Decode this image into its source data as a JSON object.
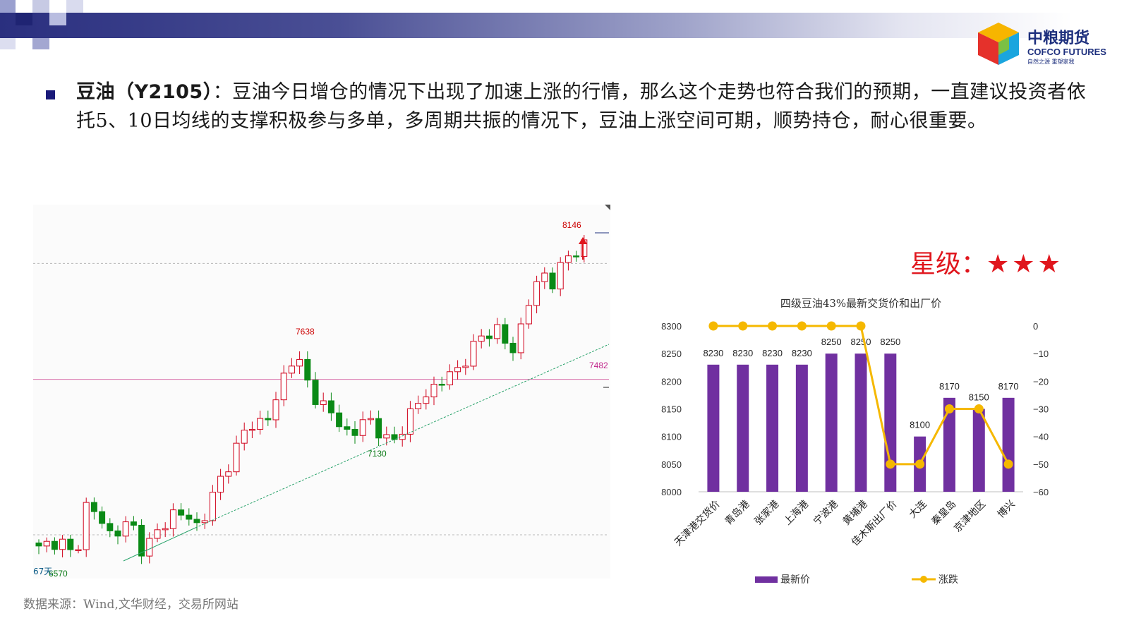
{
  "logo": {
    "cn": "中粮期货",
    "en": "COFCO FUTURES",
    "sub": "自然之源 重塑家我"
  },
  "bullet": {
    "title": "豆油（Y2105）",
    "text": "：豆油今日增仓的情况下出现了加速上涨的行情，那么这个走势也符合我们的预期，一直建议投资者依托5、10日均线的支撑积极参与多单，多周期共振的情况下，豆油上涨空间可期，顺势持仓，耐心很重要。"
  },
  "rating": {
    "label": "星级：",
    "stars": "★★★"
  },
  "candlestick": {
    "labels": {
      "high": "8146",
      "mid_high": "7638",
      "mid_low": "7130",
      "level": "7482",
      "low": "6570",
      "left_edge": "67天"
    },
    "colors": {
      "up": "#d0021b",
      "down": "#0a8a16",
      "level_line": "#d76ba8",
      "trend_line": "#2aa36b"
    }
  },
  "chart_data": {
    "type": "bar",
    "title": "四级豆油43%最新交货价和出厂价",
    "categories": [
      "天津港交货价",
      "青岛港",
      "张家港",
      "上海港",
      "宁波港",
      "黄埔港",
      "佳木斯出厂价",
      "大连",
      "秦皇岛",
      "京津地区",
      "博兴"
    ],
    "series": [
      {
        "name": "最新价",
        "type": "bar",
        "axis": "left",
        "color": "#7030a0",
        "values": [
          8230,
          8230,
          8230,
          8230,
          8250,
          8250,
          8250,
          8100,
          8170,
          8150,
          8170
        ]
      },
      {
        "name": "涨跌",
        "type": "line",
        "axis": "right",
        "color": "#f5b800",
        "values": [
          0,
          0,
          0,
          0,
          0,
          0,
          -50,
          -50,
          -30,
          -30,
          -50
        ]
      }
    ],
    "y_left": {
      "min": 8000,
      "max": 8300,
      "ticks": [
        "8000",
        "8050",
        "8100",
        "8150",
        "8200",
        "8250",
        "8300"
      ]
    },
    "y_right": {
      "min": -60,
      "max": 0,
      "ticks": [
        "−60",
        "−50",
        "−40",
        "−30",
        "−20",
        "−10",
        "0"
      ]
    },
    "bar_labels": [
      "8230",
      "8230",
      "8230",
      "8230",
      "8250",
      "8250",
      "8250",
      "8100",
      "8170",
      "8150",
      "8170"
    ],
    "legend": [
      "最新价",
      "涨跌"
    ],
    "legend_position": "bottom"
  },
  "source": "数据来源：Wind,文华财经，交易所网站"
}
